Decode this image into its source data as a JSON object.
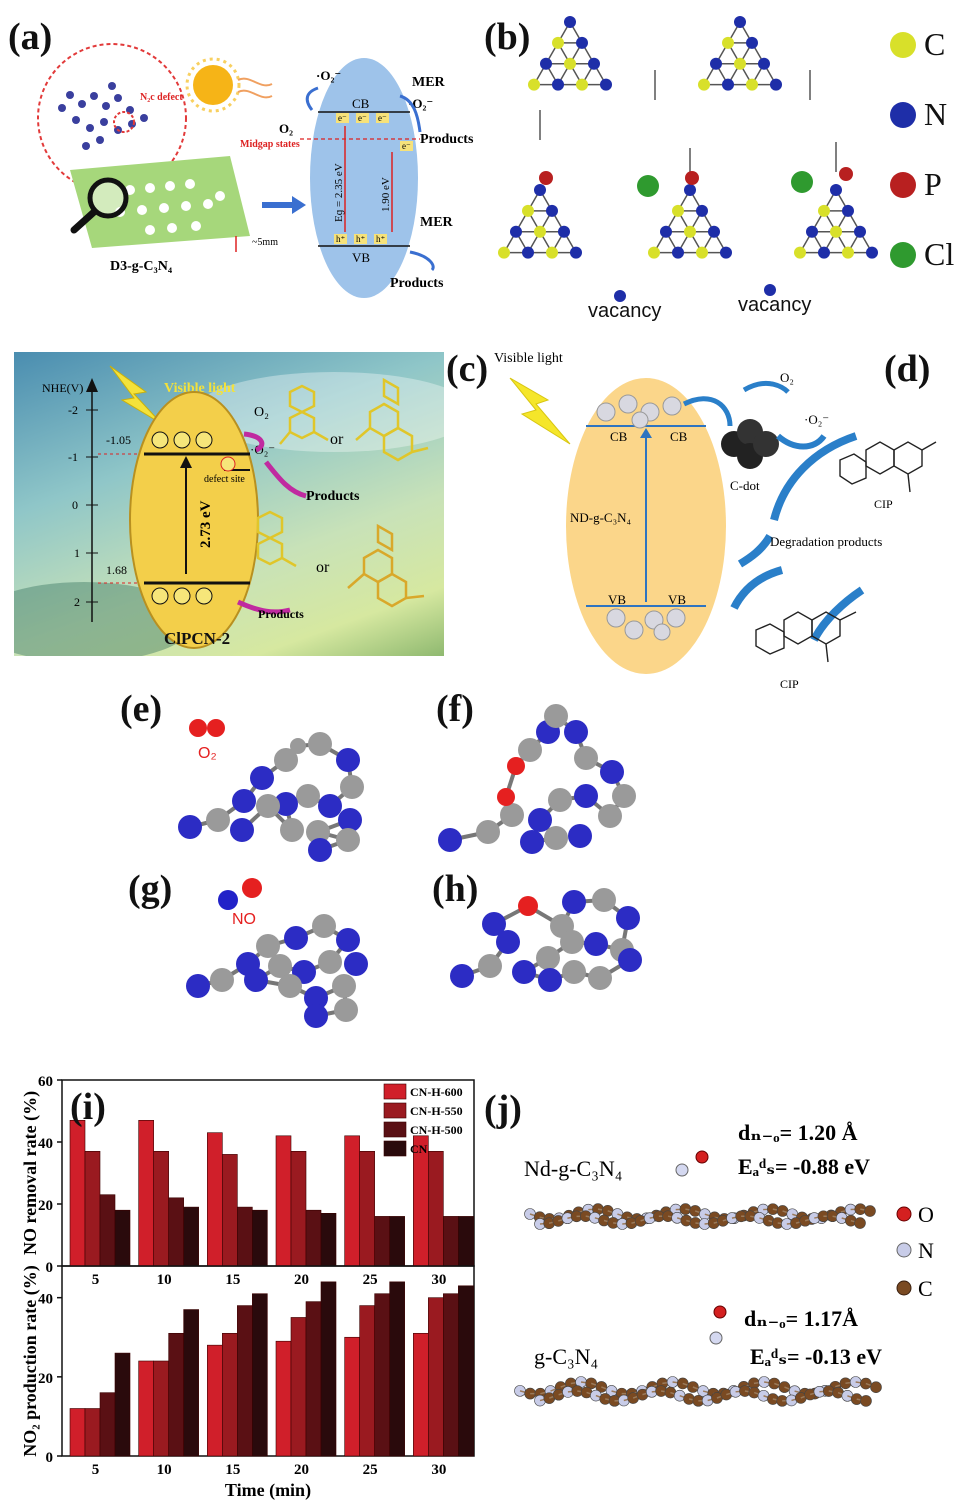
{
  "panels": {
    "a": {
      "label": "(a)",
      "defect": "N₂c defect",
      "sample": "D3-g-C₃N₄",
      "thickness": "~5mm",
      "o2": "O₂",
      "o2_radical": "·O₂⁻",
      "midgap": "Midgap states",
      "cb": "CB",
      "vb": "VB",
      "eg": "Eɡ = 2.35 eV",
      "gap2": "1.90 eV",
      "mer": "MER",
      "products": "Products",
      "electron": "e⁻",
      "hole": "h⁺"
    },
    "b": {
      "label": "(b)",
      "legend": [
        "C",
        "N",
        "P",
        "Cl"
      ],
      "legend_colors": [
        "#d8e02a",
        "#1e2ea8",
        "#b82020",
        "#2f9a2f"
      ],
      "vacancy": "vacancy"
    },
    "clpcn": {
      "axis_title": "NHE(V)",
      "ticks": [
        "-2",
        "-1",
        "0",
        "1",
        "2"
      ],
      "cb_level": "-1.05",
      "vb_level": "1.68",
      "light": "Visible light",
      "gap": "2.73 eV",
      "defect_site": "defect site",
      "o2": "O₂",
      "radical": "·O₂⁻",
      "or": "or",
      "products": "Products",
      "name": "ClPCN-2"
    },
    "c": {
      "label": "(c)",
      "light": "Visible light",
      "cb": "CB",
      "vb": "VB",
      "material": "ND-g-C₃N₄",
      "cdot": "C-dot",
      "o2": "O₂",
      "radical": "·O₂⁻",
      "degradation": "Degradation products",
      "cip": "CIP"
    },
    "d": {
      "label": "(d)"
    },
    "e": {
      "label": "(e)",
      "molecule": "O₂"
    },
    "f": {
      "label": "(f)"
    },
    "g": {
      "label": "(g)",
      "molecule": "NO"
    },
    "h": {
      "label": "(h)"
    },
    "i": {
      "label": "(i)"
    },
    "j": {
      "label": "(j)",
      "top_name": "Nd-g-C₃N₄",
      "top_d": "dₙ₋ₒ= 1.20 Å",
      "top_e": "Eₐᵈₛ= -0.88 eV",
      "bottom_name": "g-C₃N₄",
      "bottom_d": "dₙ₋ₒ= 1.17Å",
      "bottom_e": "Eₐᵈₛ= -0.13 eV",
      "legend": [
        "O",
        "N",
        "C"
      ],
      "legend_colors": [
        "#d42020",
        "#c8cce8",
        "#7a4a22"
      ]
    }
  },
  "chart_data": [
    {
      "type": "bar",
      "ylabel": "NO removal rate (%)",
      "categories": [
        "5",
        "10",
        "15",
        "20",
        "25",
        "30"
      ],
      "ylim": [
        0,
        60
      ],
      "yticks": [
        "0",
        "20",
        "40",
        "60"
      ],
      "legend_position": "top-right",
      "series": [
        {
          "name": "CN-H-600",
          "color": "#d01f2a",
          "values": [
            47,
            47,
            43,
            42,
            42,
            42
          ]
        },
        {
          "name": "CN-H-550",
          "color": "#9a1a20",
          "values": [
            37,
            37,
            36,
            37,
            37,
            37
          ]
        },
        {
          "name": "CN-H-500",
          "color": "#5a1014",
          "values": [
            23,
            22,
            19,
            18,
            16,
            16
          ]
        },
        {
          "name": "CN",
          "color": "#2a0a0c",
          "values": [
            18,
            19,
            18,
            17,
            16,
            16
          ]
        }
      ]
    },
    {
      "type": "bar",
      "ylabel": "NO₂ production rate (%)",
      "xlabel": "Time (min)",
      "categories": [
        "5",
        "10",
        "15",
        "20",
        "25",
        "30"
      ],
      "ylim": [
        0,
        48
      ],
      "yticks": [
        "0",
        "20",
        "40"
      ],
      "series": [
        {
          "name": "CN-H-600",
          "color": "#d01f2a",
          "values": [
            12,
            24,
            28,
            29,
            30,
            31
          ]
        },
        {
          "name": "CN-H-550",
          "color": "#9a1a20",
          "values": [
            12,
            24,
            31,
            35,
            38,
            40
          ]
        },
        {
          "name": "CN-H-500",
          "color": "#5a1014",
          "values": [
            16,
            31,
            38,
            39,
            41,
            41
          ]
        },
        {
          "name": "CN",
          "color": "#2a0a0c",
          "values": [
            26,
            37,
            41,
            44,
            44,
            43
          ]
        }
      ]
    }
  ]
}
